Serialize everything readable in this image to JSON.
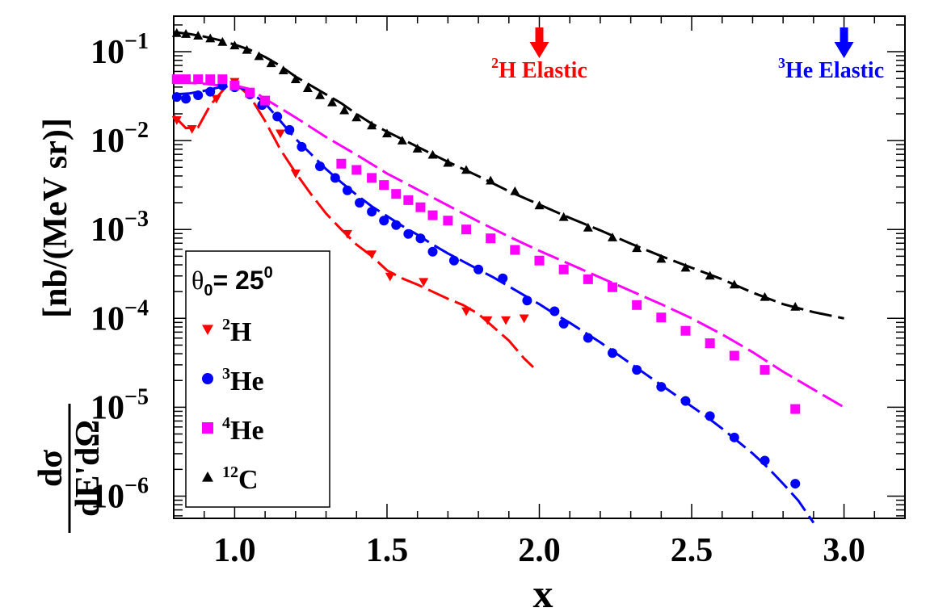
{
  "chart_data": {
    "type": "scatter",
    "scale": {
      "x": "linear",
      "y": "log10"
    },
    "xlim": [
      0.8,
      3.2
    ],
    "ylim_exp": [
      -6.25,
      -0.6
    ],
    "x_ticks": [
      {
        "value": 1.0,
        "label": "1.0"
      },
      {
        "value": 1.5,
        "label": "1.5"
      },
      {
        "value": 2.0,
        "label": "2.0"
      },
      {
        "value": 2.5,
        "label": "2.5"
      },
      {
        "value": 3.0,
        "label": "3.0"
      }
    ],
    "y_ticks": [
      {
        "exp": -1,
        "base": "10",
        "power": "−1"
      },
      {
        "exp": -2,
        "base": "10",
        "power": "−2"
      },
      {
        "exp": -3,
        "base": "10",
        "power": "−3"
      },
      {
        "exp": -4,
        "base": "10",
        "power": "−4"
      },
      {
        "exp": -5,
        "base": "10",
        "power": "−5"
      },
      {
        "exp": -6,
        "base": "10",
        "power": "−6"
      }
    ],
    "xlabel": "x",
    "ylabel": {
      "numerator": "dσ",
      "denominator": "dE'dΩ",
      "units": "[nb/(MeV sr)]"
    },
    "annotations": [
      {
        "name": "h2-elastic",
        "x": 2.0,
        "sup": "2",
        "label": "H Elastic",
        "color": "#ff0000"
      },
      {
        "name": "he3-elastic",
        "x": 3.0,
        "sup": "3",
        "label": "He Elastic",
        "color": "#0000ff"
      }
    ],
    "legend": {
      "placement": "bottom-left",
      "title_symbol": "θ",
      "title_sub": "0",
      "title_text": "= 25",
      "title_sup": "0",
      "entries": [
        {
          "sup": "2",
          "label": "H",
          "series": "H2"
        },
        {
          "sup": "3",
          "label": "He",
          "series": "He3"
        },
        {
          "sup": "4",
          "label": "He",
          "series": "He4"
        },
        {
          "sup": "12",
          "label": "C",
          "series": "C12"
        }
      ]
    },
    "series": [
      {
        "name": "H2",
        "color": "#ff0000",
        "marker": "triangle-down",
        "points": [
          [
            0.81,
            -1.77
          ],
          [
            0.86,
            -1.87
          ],
          [
            0.94,
            -1.53
          ],
          [
            1.0,
            -1.34
          ],
          [
            1.15,
            -1.92
          ],
          [
            1.2,
            -2.37
          ],
          [
            1.37,
            -3.05
          ],
          [
            1.45,
            -3.28
          ],
          [
            1.51,
            -3.53
          ],
          [
            1.62,
            -3.59
          ],
          [
            1.76,
            -3.92
          ],
          [
            1.83,
            -4.02
          ],
          [
            1.89,
            -4.02
          ],
          [
            1.95,
            -4.0
          ]
        ],
        "curve": [
          [
            0.8,
            -1.72
          ],
          [
            0.84,
            -1.86
          ],
          [
            0.88,
            -1.85
          ],
          [
            0.92,
            -1.6
          ],
          [
            0.97,
            -1.4
          ],
          [
            1.0,
            -1.35
          ],
          [
            1.05,
            -1.5
          ],
          [
            1.1,
            -1.78
          ],
          [
            1.15,
            -2.1
          ],
          [
            1.2,
            -2.36
          ],
          [
            1.25,
            -2.6
          ],
          [
            1.3,
            -2.82
          ],
          [
            1.35,
            -3.0
          ],
          [
            1.4,
            -3.17
          ],
          [
            1.45,
            -3.3
          ],
          [
            1.5,
            -3.46
          ],
          [
            1.55,
            -3.55
          ],
          [
            1.6,
            -3.62
          ],
          [
            1.65,
            -3.7
          ],
          [
            1.7,
            -3.78
          ],
          [
            1.75,
            -3.85
          ],
          [
            1.8,
            -3.95
          ],
          [
            1.85,
            -4.1
          ],
          [
            1.9,
            -4.25
          ],
          [
            1.95,
            -4.45
          ],
          [
            1.98,
            -4.55
          ]
        ]
      },
      {
        "name": "He3",
        "color": "#0000ff",
        "marker": "circle",
        "points": [
          [
            0.81,
            -1.51
          ],
          [
            0.84,
            -1.53
          ],
          [
            0.88,
            -1.49
          ],
          [
            0.92,
            -1.45
          ],
          [
            0.96,
            -1.38
          ],
          [
            1.0,
            -1.4
          ],
          [
            1.05,
            -1.48
          ],
          [
            1.09,
            -1.6
          ],
          [
            1.14,
            -1.73
          ],
          [
            1.18,
            -1.88
          ],
          [
            1.22,
            -2.07
          ],
          [
            1.28,
            -2.29
          ],
          [
            1.33,
            -2.42
          ],
          [
            1.37,
            -2.56
          ],
          [
            1.41,
            -2.7
          ],
          [
            1.45,
            -2.8
          ],
          [
            1.49,
            -2.9
          ],
          [
            1.53,
            -2.95
          ],
          [
            1.57,
            -3.05
          ],
          [
            1.61,
            -3.1
          ],
          [
            1.65,
            -3.25
          ],
          [
            1.72,
            -3.35
          ],
          [
            1.8,
            -3.45
          ],
          [
            1.88,
            -3.55
          ],
          [
            1.96,
            -3.8
          ],
          [
            2.05,
            -3.92
          ],
          [
            2.08,
            -4.06
          ],
          [
            2.16,
            -4.22
          ],
          [
            2.24,
            -4.39
          ],
          [
            2.32,
            -4.58
          ],
          [
            2.4,
            -4.77
          ],
          [
            2.48,
            -4.93
          ],
          [
            2.56,
            -5.1
          ],
          [
            2.64,
            -5.34
          ],
          [
            2.74,
            -5.6
          ],
          [
            2.84,
            -5.86
          ]
        ],
        "curve": [
          [
            0.8,
            -1.48
          ],
          [
            0.85,
            -1.47
          ],
          [
            0.9,
            -1.44
          ],
          [
            0.95,
            -1.4
          ],
          [
            1.0,
            -1.38
          ],
          [
            1.05,
            -1.45
          ],
          [
            1.1,
            -1.58
          ],
          [
            1.15,
            -1.78
          ],
          [
            1.2,
            -1.98
          ],
          [
            1.25,
            -2.15
          ],
          [
            1.3,
            -2.32
          ],
          [
            1.35,
            -2.47
          ],
          [
            1.4,
            -2.61
          ],
          [
            1.45,
            -2.74
          ],
          [
            1.5,
            -2.85
          ],
          [
            1.55,
            -2.96
          ],
          [
            1.6,
            -3.06
          ],
          [
            1.65,
            -3.17
          ],
          [
            1.7,
            -3.27
          ],
          [
            1.75,
            -3.36
          ],
          [
            1.8,
            -3.45
          ],
          [
            1.85,
            -3.54
          ],
          [
            1.9,
            -3.64
          ],
          [
            1.95,
            -3.74
          ],
          [
            2.0,
            -3.84
          ],
          [
            2.05,
            -3.95
          ],
          [
            2.1,
            -4.05
          ],
          [
            2.15,
            -4.16
          ],
          [
            2.2,
            -4.27
          ],
          [
            2.25,
            -4.39
          ],
          [
            2.3,
            -4.51
          ],
          [
            2.35,
            -4.63
          ],
          [
            2.4,
            -4.75
          ],
          [
            2.45,
            -4.87
          ],
          [
            2.5,
            -4.99
          ],
          [
            2.55,
            -5.11
          ],
          [
            2.6,
            -5.24
          ],
          [
            2.65,
            -5.38
          ],
          [
            2.7,
            -5.52
          ],
          [
            2.75,
            -5.68
          ],
          [
            2.8,
            -5.86
          ],
          [
            2.85,
            -6.05
          ],
          [
            2.9,
            -6.3
          ]
        ]
      },
      {
        "name": "He4",
        "color": "#ff00ff",
        "marker": "square",
        "points": [
          [
            0.81,
            -1.31
          ],
          [
            0.84,
            -1.31
          ],
          [
            0.88,
            -1.31
          ],
          [
            0.92,
            -1.31
          ],
          [
            0.96,
            -1.31
          ],
          [
            1.0,
            -1.38
          ],
          [
            1.05,
            -1.46
          ],
          [
            1.1,
            -1.55
          ],
          [
            1.35,
            -2.26
          ],
          [
            1.4,
            -2.33
          ],
          [
            1.45,
            -2.42
          ],
          [
            1.49,
            -2.5
          ],
          [
            1.53,
            -2.6
          ],
          [
            1.57,
            -2.67
          ],
          [
            1.61,
            -2.75
          ],
          [
            1.65,
            -2.84
          ],
          [
            1.7,
            -2.9
          ],
          [
            1.76,
            -3.0
          ],
          [
            1.84,
            -3.1
          ],
          [
            1.92,
            -3.23
          ],
          [
            2.0,
            -3.35
          ],
          [
            2.08,
            -3.45
          ],
          [
            2.16,
            -3.56
          ],
          [
            2.24,
            -3.65
          ],
          [
            2.32,
            -3.85
          ],
          [
            2.4,
            -3.99
          ],
          [
            2.48,
            -4.14
          ],
          [
            2.56,
            -4.28
          ],
          [
            2.64,
            -4.42
          ],
          [
            2.74,
            -4.58
          ],
          [
            2.84,
            -5.02
          ]
        ],
        "curve": [
          [
            0.8,
            -1.35
          ],
          [
            0.85,
            -1.35
          ],
          [
            0.9,
            -1.36
          ],
          [
            0.95,
            -1.38
          ],
          [
            1.0,
            -1.38
          ],
          [
            1.05,
            -1.42
          ],
          [
            1.1,
            -1.53
          ],
          [
            1.2,
            -1.74
          ],
          [
            1.3,
            -1.96
          ],
          [
            1.4,
            -2.16
          ],
          [
            1.5,
            -2.37
          ],
          [
            1.6,
            -2.55
          ],
          [
            1.7,
            -2.73
          ],
          [
            1.8,
            -2.91
          ],
          [
            1.9,
            -3.08
          ],
          [
            2.0,
            -3.24
          ],
          [
            2.1,
            -3.39
          ],
          [
            2.2,
            -3.54
          ],
          [
            2.3,
            -3.69
          ],
          [
            2.4,
            -3.84
          ],
          [
            2.5,
            -4.0
          ],
          [
            2.6,
            -4.18
          ],
          [
            2.7,
            -4.38
          ],
          [
            2.8,
            -4.6
          ],
          [
            2.9,
            -4.8
          ],
          [
            3.0,
            -5.0
          ]
        ]
      },
      {
        "name": "C12",
        "color": "#000000",
        "marker": "triangle-up",
        "points": [
          [
            0.81,
            -0.79
          ],
          [
            0.84,
            -0.8
          ],
          [
            0.88,
            -0.82
          ],
          [
            0.92,
            -0.85
          ],
          [
            0.96,
            -0.89
          ],
          [
            1.0,
            -0.93
          ],
          [
            1.04,
            -0.98
          ],
          [
            1.08,
            -1.05
          ],
          [
            1.12,
            -1.13
          ],
          [
            1.16,
            -1.21
          ],
          [
            1.2,
            -1.31
          ],
          [
            1.24,
            -1.41
          ],
          [
            1.28,
            -1.49
          ],
          [
            1.32,
            -1.57
          ],
          [
            1.36,
            -1.66
          ],
          [
            1.4,
            -1.74
          ],
          [
            1.45,
            -1.83
          ],
          [
            1.5,
            -1.92
          ],
          [
            1.55,
            -2.0
          ],
          [
            1.6,
            -2.09
          ],
          [
            1.65,
            -2.16
          ],
          [
            1.7,
            -2.25
          ],
          [
            1.76,
            -2.33
          ],
          [
            1.84,
            -2.45
          ],
          [
            1.92,
            -2.57
          ],
          [
            2.0,
            -2.73
          ],
          [
            2.08,
            -2.86
          ],
          [
            2.16,
            -2.98
          ],
          [
            2.24,
            -3.09
          ],
          [
            2.32,
            -3.21
          ],
          [
            2.4,
            -3.33
          ],
          [
            2.48,
            -3.43
          ],
          [
            2.56,
            -3.52
          ],
          [
            2.64,
            -3.62
          ],
          [
            2.74,
            -3.76
          ],
          [
            2.84,
            -3.87
          ]
        ],
        "curve": [
          [
            0.8,
            -0.78
          ],
          [
            0.85,
            -0.8
          ],
          [
            0.9,
            -0.83
          ],
          [
            0.95,
            -0.87
          ],
          [
            1.0,
            -0.92
          ],
          [
            1.05,
            -0.98
          ],
          [
            1.1,
            -1.06
          ],
          [
            1.15,
            -1.16
          ],
          [
            1.2,
            -1.28
          ],
          [
            1.25,
            -1.38
          ],
          [
            1.3,
            -1.48
          ],
          [
            1.35,
            -1.58
          ],
          [
            1.4,
            -1.7
          ],
          [
            1.45,
            -1.81
          ],
          [
            1.5,
            -1.9
          ],
          [
            1.6,
            -2.07
          ],
          [
            1.7,
            -2.24
          ],
          [
            1.8,
            -2.4
          ],
          [
            1.9,
            -2.57
          ],
          [
            2.0,
            -2.72
          ],
          [
            2.1,
            -2.87
          ],
          [
            2.2,
            -3.01
          ],
          [
            2.3,
            -3.16
          ],
          [
            2.4,
            -3.3
          ],
          [
            2.5,
            -3.43
          ],
          [
            2.6,
            -3.56
          ],
          [
            2.7,
            -3.71
          ],
          [
            2.8,
            -3.84
          ],
          [
            2.9,
            -3.93
          ],
          [
            3.0,
            -4.0
          ]
        ]
      }
    ]
  }
}
